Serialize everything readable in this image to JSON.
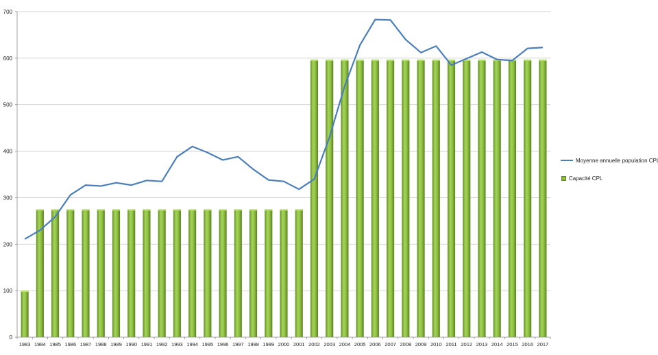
{
  "chart_data": {
    "type": "bar",
    "categories": [
      "1983",
      "1984",
      "1985",
      "1986",
      "1987",
      "1988",
      "1989",
      "1990",
      "1991",
      "1992",
      "1993",
      "1994",
      "1995",
      "1996",
      "1997",
      "1998",
      "1999",
      "2000",
      "2001",
      "2002",
      "2003",
      "2004",
      "2005",
      "2006",
      "2007",
      "2008",
      "2009",
      "2010",
      "2011",
      "2012",
      "2013",
      "2014",
      "2015",
      "2016",
      "2017"
    ],
    "series": [
      {
        "name": "Moyenne annuelle population CPL",
        "type": "line",
        "color": "#4a7ebb",
        "values": [
          211,
          230,
          259,
          306,
          327,
          325,
          332,
          327,
          337,
          335,
          388,
          410,
          397,
          381,
          388,
          361,
          338,
          335,
          318,
          340,
          430,
          540,
          628,
          683,
          682,
          640,
          612,
          626,
          585,
          599,
          613,
          597,
          595,
          621,
          623
        ]
      },
      {
        "name": "Capacité CPL",
        "type": "bar",
        "color": "#8bbd3c",
        "values": [
          100,
          275,
          275,
          275,
          275,
          275,
          275,
          275,
          275,
          275,
          275,
          275,
          275,
          275,
          275,
          275,
          275,
          275,
          275,
          597,
          597,
          597,
          597,
          597,
          597,
          597,
          597,
          597,
          597,
          597,
          597,
          597,
          597,
          597,
          597
        ]
      }
    ],
    "title": "",
    "xlabel": "",
    "ylabel": "",
    "ylim": [
      0,
      700
    ],
    "yticks": [
      0,
      100,
      200,
      300,
      400,
      500,
      600,
      700
    ],
    "grid": true,
    "legend_position": "right"
  }
}
